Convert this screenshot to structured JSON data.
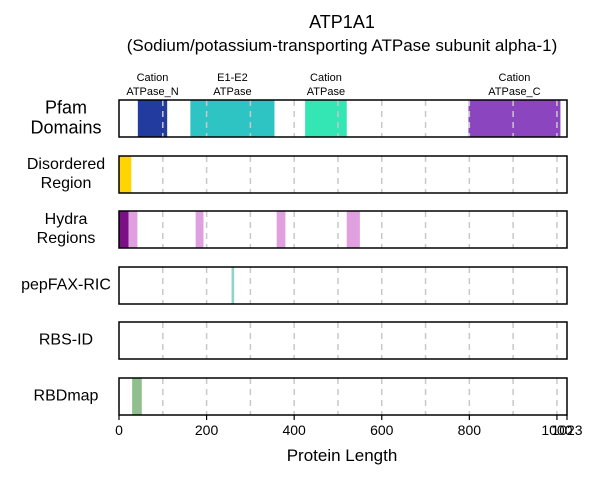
{
  "chart_data": {
    "type": "bar",
    "title": "ATP1A1",
    "subtitle": "(Sodium/potassium-transporting ATPase subunit alpha-1)",
    "xlabel": "Protein Length",
    "xlim": [
      0,
      1023
    ],
    "x_ticks": [
      0,
      200,
      400,
      600,
      800,
      1000,
      1023
    ],
    "x_tick_labels": [
      "0",
      "200",
      "400",
      "600",
      "800",
      "1000",
      "1023"
    ],
    "grid": "vertical dashed lines every 100 residues",
    "tracks": [
      {
        "label": "Pfam\nDomains",
        "segments": [
          {
            "start": 43,
            "end": 110,
            "color": "#223b9e",
            "label": "Cation\nATPase_N"
          },
          {
            "start": 163,
            "end": 355,
            "color": "#2ec4c4",
            "label": "E1-E2\nATPase"
          },
          {
            "start": 425,
            "end": 520,
            "color": "#33e6b4",
            "label": "Cation\nATPase"
          },
          {
            "start": 798,
            "end": 1008,
            "color": "#8b45bf",
            "label": "Cation\nATPase_C"
          }
        ]
      },
      {
        "label": "Disordered\nRegion",
        "segments": [
          {
            "start": 0,
            "end": 28,
            "color": "#ffd400"
          }
        ]
      },
      {
        "label": "Hydra\nRegions",
        "segments": [
          {
            "start": 0,
            "end": 22,
            "color": "#7a0f86"
          },
          {
            "start": 22,
            "end": 42,
            "color": "#e0a0e0"
          },
          {
            "start": 175,
            "end": 193,
            "color": "#e0a0e0"
          },
          {
            "start": 360,
            "end": 380,
            "color": "#e0a0e0"
          },
          {
            "start": 520,
            "end": 550,
            "color": "#e0a0e0"
          }
        ]
      },
      {
        "label": "pepFAX-RIC",
        "segments": [
          {
            "start": 257,
            "end": 263,
            "color": "#8fd4c8"
          }
        ]
      },
      {
        "label": "RBS-ID",
        "segments": []
      },
      {
        "label": "RBDmap",
        "segments": [
          {
            "start": 30,
            "end": 52,
            "color": "#8fbf8f"
          }
        ]
      }
    ]
  }
}
